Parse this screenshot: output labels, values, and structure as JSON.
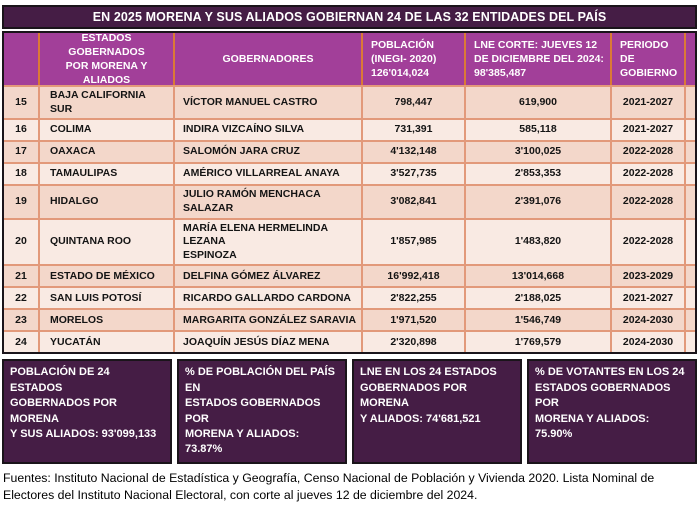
{
  "title": "EN 2025 MORENA Y SUS ALIADOS GOBIERNAN 24 DE LAS 32 ENTIDADES DEL PAÍS",
  "table": {
    "columns": {
      "num": "",
      "states": "ESTADOS GOBERNADOS\nPOR MORENA Y ALIADOS",
      "governors": "GOBERNADORES",
      "population": "POBLACIÓN\n(INEGI- 2020)\n126'014,024",
      "lne": "LNE CORTE: JUEVES 12\nDE DICIEMBRE DEL 2024:\n98'385,487",
      "period": "PERIODO\nDE GOBIERNO"
    },
    "rows": [
      {
        "num": "15",
        "state": "BAJA CALIFORNIA SUR",
        "governor": "VÍCTOR MANUEL CASTRO",
        "population": "798,447",
        "lne": "619,900",
        "period": "2021-2027"
      },
      {
        "num": "16",
        "state": "COLIMA",
        "governor": "INDIRA VIZCAÍNO SILVA",
        "population": "731,391",
        "lne": "585,118",
        "period": "2021-2027"
      },
      {
        "num": "17",
        "state": "OAXACA",
        "governor": "SALOMÓN JARA CRUZ",
        "population": "4'132,148",
        "lne": "3'100,025",
        "period": "2022-2028"
      },
      {
        "num": "18",
        "state": "TAMAULIPAS",
        "governor": "AMÉRICO VILLARREAL ANAYA",
        "population": "3'527,735",
        "lne": "2'853,353",
        "period": "2022-2028"
      },
      {
        "num": "19",
        "state": "HIDALGO",
        "governor": "JULIO RAMÓN MENCHACA SALAZAR",
        "population": "3'082,841",
        "lne": "2'391,076",
        "period": "2022-2028"
      },
      {
        "num": "20",
        "state": "QUINTANA ROO",
        "governor": "MARÍA ELENA HERMELINDA LEZANA\nESPINOZA",
        "population": "1'857,985",
        "lne": "1'483,820",
        "period": "2022-2028"
      },
      {
        "num": "21",
        "state": "ESTADO DE MÉXICO",
        "governor": "DELFINA GÓMEZ ÁLVAREZ",
        "population": "16'992,418",
        "lne": "13'014,668",
        "period": "2023-2029"
      },
      {
        "num": "22",
        "state": "SAN LUIS POTOSÍ",
        "governor": "RICARDO GALLARDO CARDONA",
        "population": "2'822,255",
        "lne": "2'188,025",
        "period": "2021-2027"
      },
      {
        "num": "23",
        "state": "MORELOS",
        "governor": "MARGARITA GONZÁLEZ SARAVIA",
        "population": "1'971,520",
        "lne": "1'546,749",
        "period": "2024-2030"
      },
      {
        "num": "24",
        "state": "YUCATÁN",
        "governor": "JOAQUÍN JESÚS DÍAZ MENA",
        "population": "2'320,898",
        "lne": "1'769,579",
        "period": "2024-2030"
      }
    ]
  },
  "summary": {
    "boxes": [
      {
        "text": "POBLACIÓN DE 24 ESTADOS\nGOBERNADOS POR MORENA\nY SUS ALIADOS: 93'099,133"
      },
      {
        "text": "% DE POBLACIÓN DEL PAÍS EN\nESTADOS GOBERNADOS POR\nMORENA Y ALIADOS: 73.87%"
      },
      {
        "text": "LNE EN LOS 24 ESTADOS\nGOBERNADOS POR MORENA\nY ALIADOS: 74'681,521"
      },
      {
        "text": "% DE VOTANTES EN LOS 24\nESTADOS GOBERNADOS POR\nMORENA Y ALIADOS: 75.90%"
      }
    ]
  },
  "sources": "Fuentes: Instituto Nacional de Estadística y Geografía, Censo Nacional de Población y Vivienda 2020. Lista Nominal de Electores del Instituto Nacional Electoral, con corte al jueves 12 de diciembre del 2024.",
  "colors": {
    "dark_purple": "#451d45",
    "magenta": "#a23f99",
    "row_odd": "#f3d7ca",
    "row_even": "#f9eae3",
    "border_salmon": "#e2997a",
    "border_orange": "#db7a36"
  }
}
